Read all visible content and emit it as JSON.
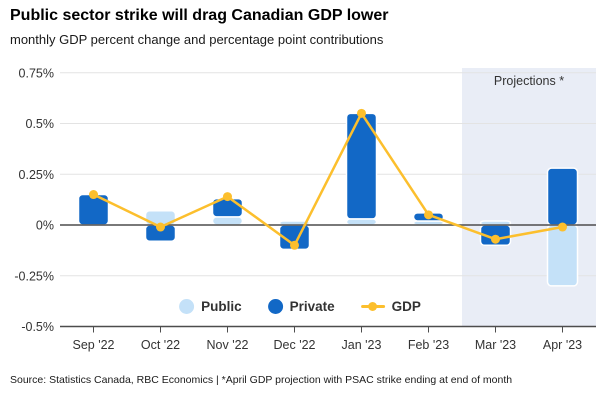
{
  "header": {
    "title": "Public sector strike will drag Canadian GDP lower",
    "subtitle": "monthly GDP percent change and percentage point contributions"
  },
  "footer": {
    "source": "Source: Statistics Canada, RBC Economics | *April GDP projection with PSAC strike ending at end of month"
  },
  "legend": {
    "items": [
      {
        "label": "Public",
        "color": "#C4E1F8",
        "marker": "circle"
      },
      {
        "label": "Private",
        "color": "#1268C6",
        "marker": "circle"
      },
      {
        "label": "GDP",
        "color": "#FCBF2D",
        "marker": "line-dot"
      }
    ]
  },
  "chart_data": {
    "type": "bar",
    "subtype": "stacked-bars-with-line-overlay",
    "title": "Public sector strike will drag Canadian GDP lower",
    "subtitle": "monthly GDP percent change and percentage point contributions",
    "xlabel": "",
    "ylabel": "",
    "categories": [
      "Sep '22",
      "Oct '22",
      "Nov '22",
      "Dec '22",
      "Jan '23",
      "Feb '23",
      "Mar '23",
      "Apr '23"
    ],
    "series": [
      {
        "name": "Public",
        "type": "bar",
        "color": "#C4E1F8",
        "values": [
          0.0,
          0.07,
          0.04,
          0.02,
          0.03,
          0.02,
          0.02,
          -0.3
        ]
      },
      {
        "name": "Private",
        "type": "bar",
        "color": "#1268C6",
        "values": [
          0.15,
          -0.08,
          0.09,
          -0.12,
          0.52,
          0.04,
          -0.1,
          0.28
        ]
      },
      {
        "name": "GDP",
        "type": "line",
        "color": "#FCBF2D",
        "values": [
          0.15,
          -0.01,
          0.14,
          -0.1,
          0.55,
          0.05,
          -0.07,
          -0.01
        ]
      }
    ],
    "ytick_values": [
      0.75,
      0.5,
      0.25,
      0,
      -0.25,
      -0.5
    ],
    "ytick_labels": [
      "0.75%",
      "0.5%",
      "0.25%",
      "0%",
      "-0.25%",
      "-0.5%"
    ],
    "ylim": [
      -0.5,
      0.78
    ],
    "grid": true,
    "legend_position": "bottom-center-inside-plot",
    "projection": {
      "label": "Projections *",
      "start_index": 6
    },
    "colors": {
      "projection_bg": "#E9EDF6",
      "gridline": "#E3E3E3",
      "axis": "#4D4D4D",
      "bar_outline": "#FFFFFF",
      "tick_text": "#333333"
    }
  }
}
